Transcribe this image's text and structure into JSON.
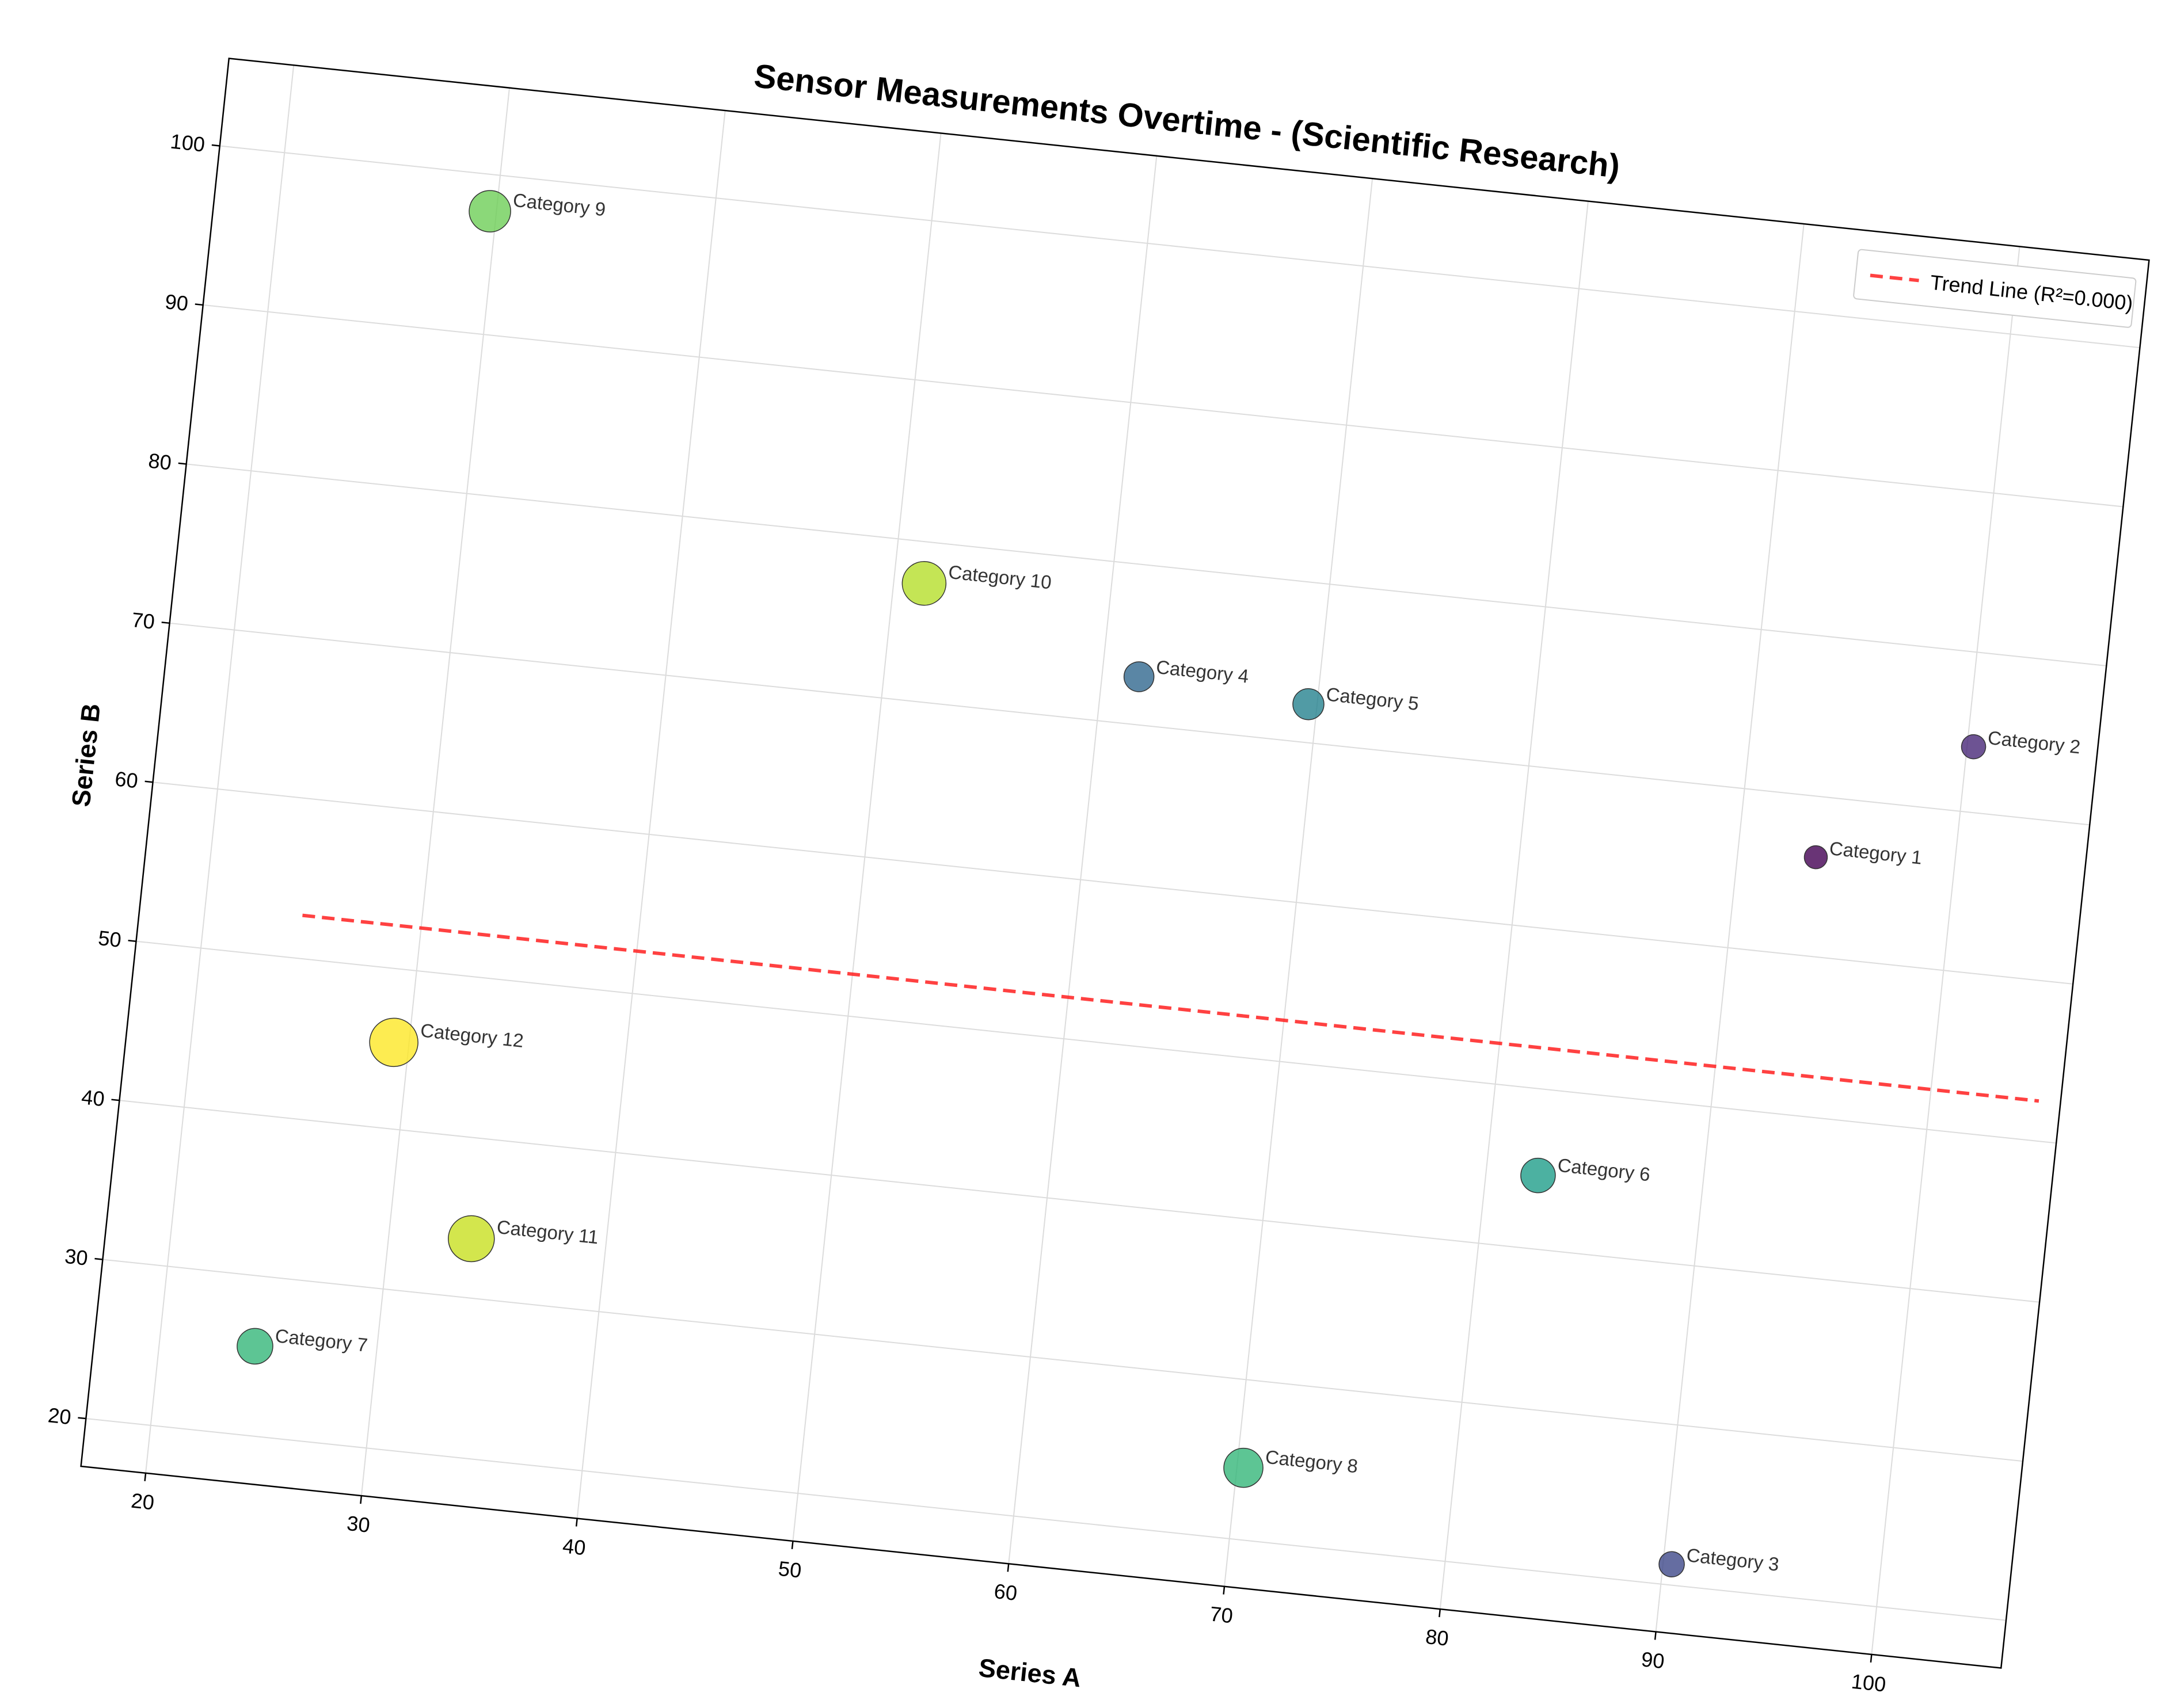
{
  "chart_data": {
    "type": "scatter",
    "title": "Sensor Measurements Overtime - (Scientific Research)",
    "xlabel": "Series A",
    "ylabel": "Series B",
    "xlim": [
      17,
      106
    ],
    "ylim": [
      17,
      105.5
    ],
    "x_ticks": [
      "20",
      "30",
      "40",
      "50",
      "60",
      "70",
      "80",
      "90",
      "100"
    ],
    "y_ticks": [
      "20",
      "30",
      "40",
      "50",
      "60",
      "70",
      "80",
      "90",
      "100"
    ],
    "grid": true,
    "rotation_deg": 6,
    "points": [
      {
        "label": "Category 1",
        "x": 93.6,
        "y": 66.2,
        "color": "#440154",
        "size": 20
      },
      {
        "label": "Category 2",
        "x": 100.3,
        "y": 74.1,
        "color": "#482878",
        "size": 21
      },
      {
        "label": "Category 3",
        "x": 90.4,
        "y": 21.3,
        "color": "#3e4989",
        "size": 22
      },
      {
        "label": "Category 4",
        "x": 61.7,
        "y": 73.0,
        "color": "#31688e",
        "size": 26
      },
      {
        "label": "Category 5",
        "x": 69.6,
        "y": 72.4,
        "color": "#26828e",
        "size": 27
      },
      {
        "label": "Category 6",
        "x": 82.4,
        "y": 44.6,
        "color": "#1f9e89",
        "size": 30
      },
      {
        "label": "Category 7",
        "x": 24.4,
        "y": 25.6,
        "color": "#35b779",
        "size": 31
      },
      {
        "label": "Category 8",
        "x": 70.3,
        "y": 24.5,
        "color": "#35b779",
        "size": 34
      },
      {
        "label": "Category 9",
        "x": 29.7,
        "y": 97.7,
        "color": "#6ece58",
        "size": 36
      },
      {
        "label": "Category 10",
        "x": 51.4,
        "y": 77.4,
        "color": "#b5de2b",
        "size": 38
      },
      {
        "label": "Category 11",
        "x": 33.8,
        "y": 33.7,
        "color": "#c8e020",
        "size": 40
      },
      {
        "label": "Category 12",
        "x": 29.3,
        "y": 45.4,
        "color": "#fde725",
        "size": 42
      }
    ],
    "trend_line": {
      "label": "Trend Line (R²=0.000)",
      "x": [
        24.5,
        105
      ],
      "y": [
        52.7,
        52.5
      ],
      "color": "#ff2020"
    },
    "legend_position": "upper-right"
  }
}
